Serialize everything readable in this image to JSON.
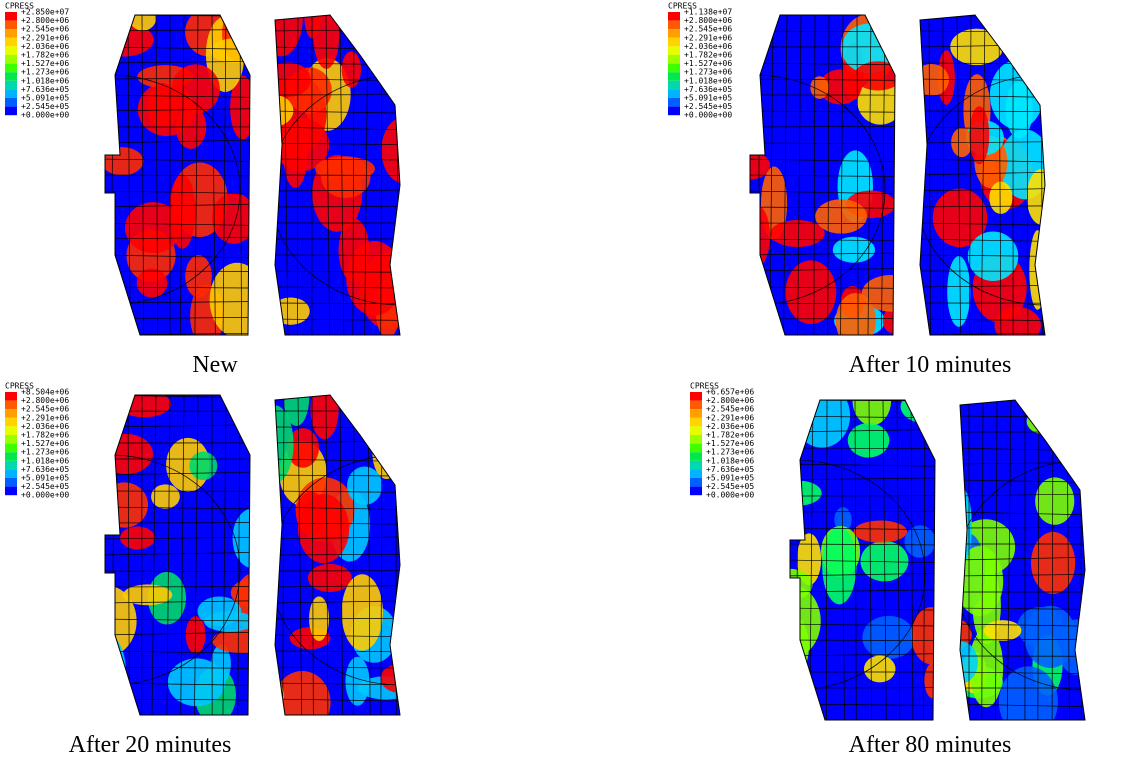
{
  "panels": [
    {
      "legend_title": "CPRESS",
      "caption": "New",
      "legend_labels": [
        "+2.850e+07",
        "+2.800e+06",
        "+2.545e+06",
        "+2.291e+06",
        "+2.036e+06",
        "+1.782e+06",
        "+1.527e+06",
        "+1.273e+06",
        "+1.018e+06",
        "+7.636e+05",
        "+5.091e+05",
        "+2.545e+05",
        "+0.000e+00"
      ]
    },
    {
      "legend_title": "CPRESS",
      "caption": "After 10 minutes",
      "legend_labels": [
        "+1.138e+07",
        "+2.800e+06",
        "+2.545e+06",
        "+2.291e+06",
        "+2.036e+06",
        "+1.782e+06",
        "+1.527e+06",
        "+1.273e+06",
        "+1.018e+06",
        "+7.636e+05",
        "+5.091e+05",
        "+2.545e+05",
        "+0.000e+00"
      ]
    },
    {
      "legend_title": "CPRESS",
      "caption": "After 20 minutes",
      "legend_labels": [
        "+8.504e+06",
        "+2.800e+06",
        "+2.545e+06",
        "+2.291e+06",
        "+2.036e+06",
        "+1.782e+06",
        "+1.527e+06",
        "+1.273e+06",
        "+1.018e+06",
        "+7.636e+05",
        "+5.091e+05",
        "+2.545e+05",
        "+0.000e+00"
      ]
    },
    {
      "legend_title": "CPRESS",
      "caption": "After 80 minutes",
      "legend_labels": [
        "+6.657e+06",
        "+2.800e+06",
        "+2.545e+06",
        "+2.291e+06",
        "+2.036e+06",
        "+1.782e+06",
        "+1.527e+06",
        "+1.273e+06",
        "+1.018e+06",
        "+7.636e+05",
        "+5.091e+05",
        "+2.545e+05",
        "+0.000e+00"
      ]
    }
  ]
}
